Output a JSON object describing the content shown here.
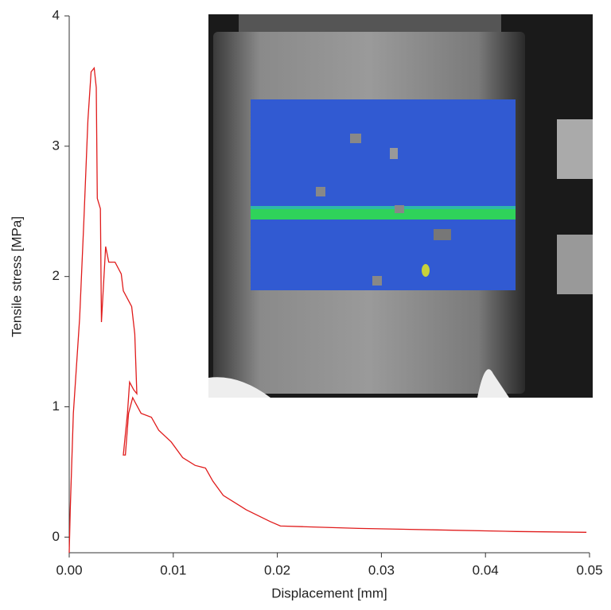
{
  "chart_data": {
    "type": "line",
    "xlabel": "Displacement [mm]",
    "ylabel": "Tensile stress [MPa]",
    "xlim": [
      0,
      0.05
    ],
    "ylim": [
      -0.12,
      4
    ],
    "xticks": [
      {
        "value": 0,
        "label": "0.00"
      },
      0.01,
      0.02,
      0.03,
      0.04,
      0.05
    ],
    "yticks": [
      0,
      1,
      2,
      3,
      4
    ],
    "series": [
      {
        "color": "#e01b1b",
        "x": [
          0,
          0.0001,
          0.0004,
          0.0006,
          0.001,
          0.0014,
          0.0018,
          0.0021,
          0.0024,
          0.0026,
          0.0027,
          0.003,
          0.0031,
          0.0035,
          0.0038,
          0.0044,
          0.005,
          0.0052,
          0.006,
          0.0063,
          0.0065,
          0.0062,
          0.0058,
          0.0056,
          0.0052,
          0.0054,
          0.0057,
          0.0061,
          0.0063,
          0.0069,
          0.0079,
          0.0086,
          0.0098,
          0.0109,
          0.0121,
          0.0131,
          0.0138,
          0.0148,
          0.017,
          0.0193,
          0.0203,
          0.0224,
          0.0278,
          0.0354,
          0.043,
          0.0497
        ],
        "values": [
          -0.12,
          0.21,
          0.95,
          1.19,
          1.68,
          2.41,
          3.2,
          3.57,
          3.6,
          3.45,
          2.6,
          2.52,
          1.65,
          2.23,
          2.11,
          2.11,
          2.02,
          1.89,
          1.77,
          1.56,
          1.1,
          1.13,
          1.19,
          0.95,
          0.63,
          0.63,
          0.95,
          1.07,
          1.04,
          0.95,
          0.92,
          0.82,
          0.73,
          0.61,
          0.55,
          0.53,
          0.43,
          0.32,
          0.21,
          0.12,
          0.085,
          0.08,
          0.067,
          0.055,
          0.043,
          0.037
        ]
      }
    ]
  }
}
